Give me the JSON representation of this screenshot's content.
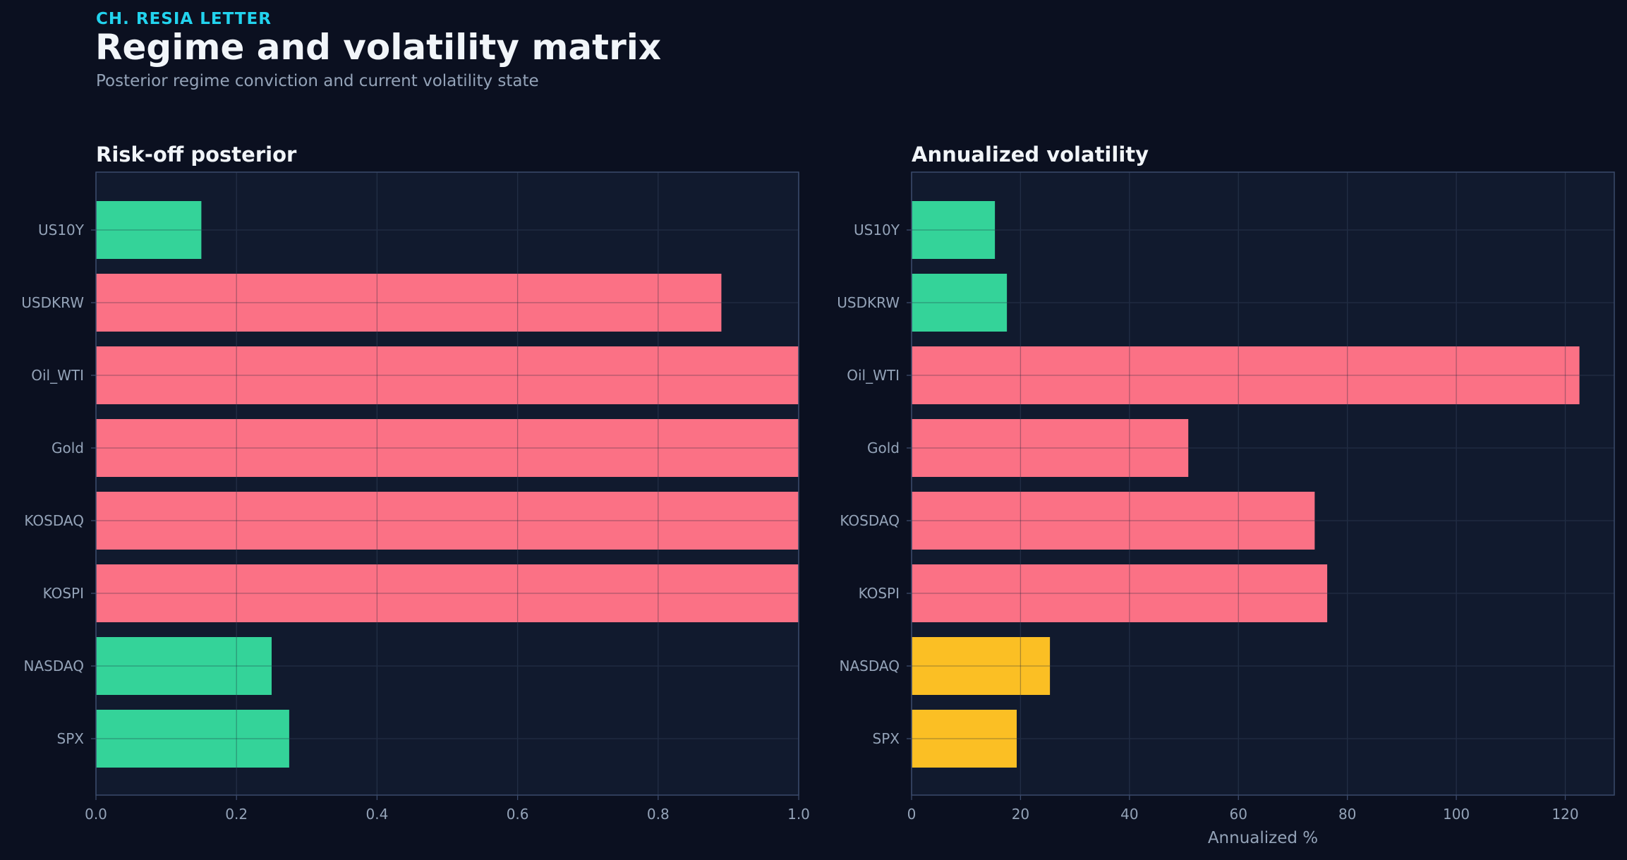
{
  "header": {
    "kicker": "CH. RESIA LETTER",
    "title": "Regime and volatility matrix",
    "subtitle": "Posterior regime conviction and current volatility state"
  },
  "colors": {
    "background": "#0b1020",
    "panel": "#111a2e",
    "frame": "#3b4a6b",
    "grid": "#26324a",
    "tick_text": "#94a3b8",
    "risk_on": "#34d399",
    "risk_off": "#fb7185",
    "neutral": "#fbbf24"
  },
  "chart_data": [
    {
      "type": "bar",
      "orientation": "horizontal",
      "title": "Risk-off posterior",
      "xlabel": "",
      "categories": [
        "US10Y",
        "USDKRW",
        "Oil_WTI",
        "Gold",
        "KOSDAQ",
        "KOSPI",
        "NASDAQ",
        "SPX"
      ],
      "values": [
        0.15,
        0.89,
        1.0,
        1.0,
        1.0,
        1.0,
        0.25,
        0.275
      ],
      "bar_colors": [
        "risk_on",
        "risk_off",
        "risk_off",
        "risk_off",
        "risk_off",
        "risk_off",
        "risk_on",
        "risk_on"
      ],
      "xlim": [
        0,
        1.0
      ],
      "xticks": [
        0.0,
        0.2,
        0.4,
        0.6,
        0.8,
        1.0
      ],
      "xtick_labels": [
        "0.0",
        "0.2",
        "0.4",
        "0.6",
        "0.8",
        "1.0"
      ],
      "grid": true
    },
    {
      "type": "bar",
      "orientation": "horizontal",
      "title": "Annualized volatility",
      "xlabel": "Annualized %",
      "categories": [
        "US10Y",
        "USDKRW",
        "Oil_WTI",
        "Gold",
        "KOSDAQ",
        "KOSPI",
        "NASDAQ",
        "SPX"
      ],
      "values": [
        15.3,
        17.5,
        122.6,
        50.8,
        74.0,
        76.3,
        25.4,
        19.3
      ],
      "bar_colors": [
        "risk_on",
        "risk_on",
        "risk_off",
        "risk_off",
        "risk_off",
        "risk_off",
        "neutral",
        "neutral"
      ],
      "xlim": [
        0,
        129
      ],
      "xticks": [
        0,
        20,
        40,
        60,
        80,
        100,
        120
      ],
      "xtick_labels": [
        "0",
        "20",
        "40",
        "60",
        "80",
        "100",
        "120"
      ],
      "grid": true
    }
  ]
}
